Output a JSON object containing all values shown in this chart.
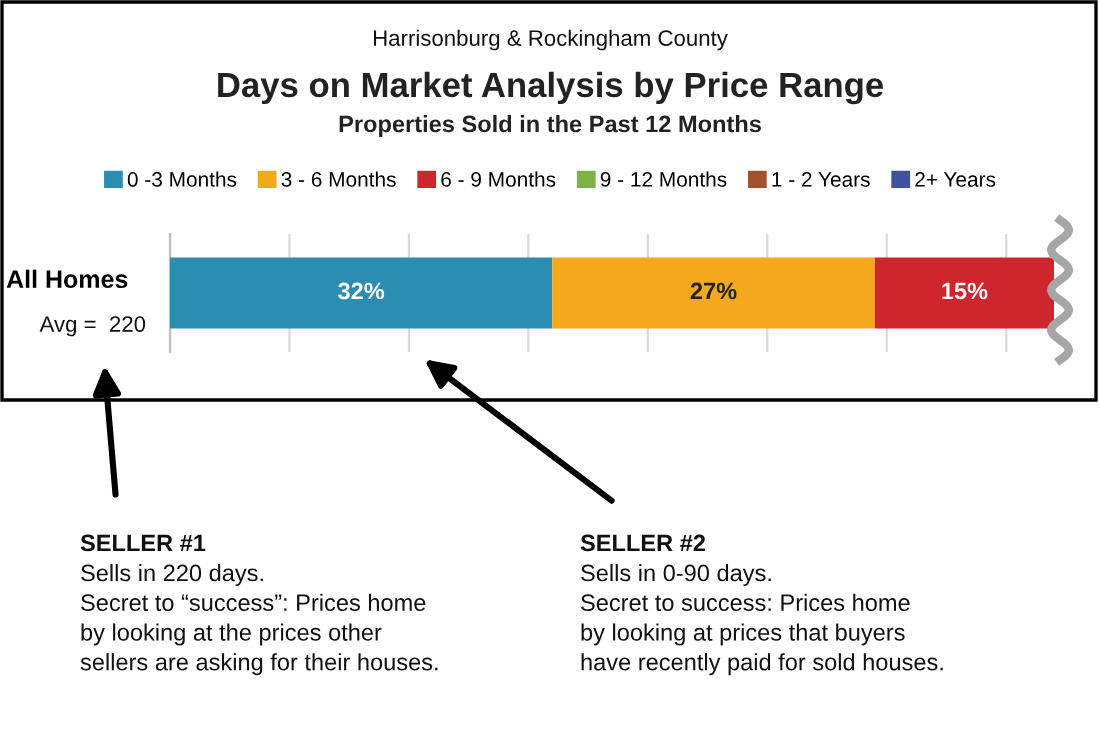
{
  "chart_data": {
    "type": "bar",
    "orientation": "horizontal",
    "stacked": true,
    "title": "Days on Market Analysis by Price Range",
    "subtitle": "Properties Sold in the Past 12 Months",
    "categories": [
      "All Homes"
    ],
    "series": [
      {
        "name": "0 -3 Months",
        "color": "#2b8db0",
        "values": [
          32
        ],
        "value_labels": [
          "32%"
        ]
      },
      {
        "name": "3 - 6 Months",
        "color": "#f4a81c",
        "values": [
          27
        ],
        "value_labels": [
          "27%"
        ]
      },
      {
        "name": "6 - 9 Months",
        "color": "#cf252c",
        "values": [
          15
        ],
        "value_labels": [
          "15%"
        ]
      },
      {
        "name": "9 - 12 Months",
        "color": "#7cb342",
        "values": [
          null
        ]
      },
      {
        "name": "1 - 2 Years",
        "color": "#a0522d",
        "values": [
          null
        ]
      },
      {
        "name": "2+ Years",
        "color": "#3f51a0",
        "values": [
          null
        ]
      }
    ],
    "grid": "x",
    "legend": "top",
    "tick_labels": "y",
    "annotations": [
      "Harrisonburg & Rockingham County",
      "Avg =  220",
      "SELLER #1",
      "Sells in 220 days.\nSecret to “success”: Prices home\nby looking at the prices other\nsellers are asking for their houses.",
      "SELLER #2",
      "Sells in 0-90 days.\nSecret to success: Prices home\nby looking at prices that buyers\nhave recently paid for sold houses."
    ]
  }
}
